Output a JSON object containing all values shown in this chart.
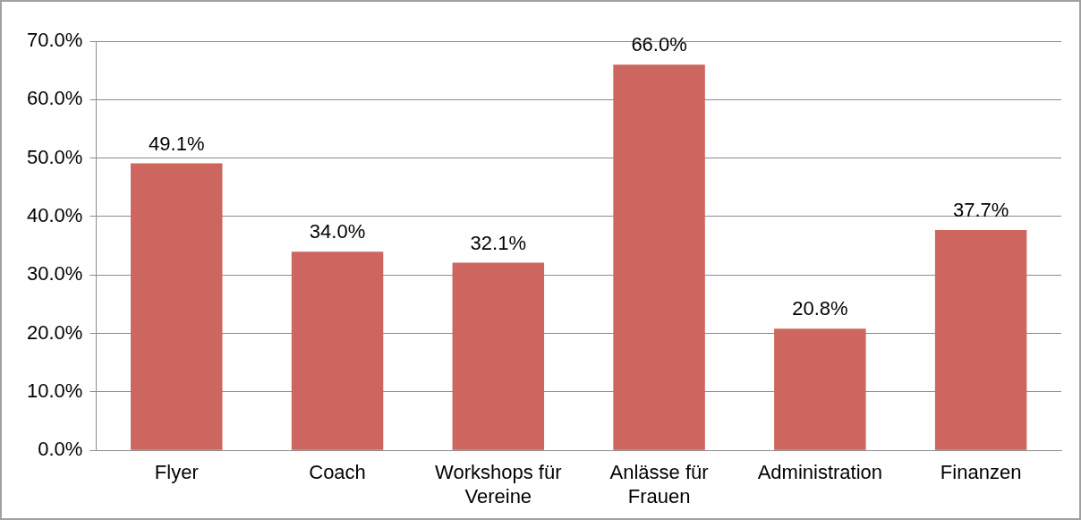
{
  "chart_data": {
    "type": "bar",
    "categories": [
      "Flyer",
      "Coach",
      "Workshops für Vereine",
      "Anlässe für Frauen",
      "Administration",
      "Finanzen"
    ],
    "values": [
      49.1,
      34.0,
      32.1,
      66.0,
      20.8,
      37.7
    ],
    "color": "#cc665e",
    "value_labels": [
      "49.1%",
      "34.0%",
      "32.1%",
      "66.0%",
      "20.8%",
      "37.7%"
    ],
    "ylim": [
      0,
      70
    ],
    "yticks": [
      {
        "value": 0,
        "label": "0.0%"
      },
      {
        "value": 10,
        "label": "10.0%"
      },
      {
        "value": 20,
        "label": "20.0%"
      },
      {
        "value": 30,
        "label": "30.0%"
      },
      {
        "value": 40,
        "label": "40.0%"
      },
      {
        "value": 50,
        "label": "50.0%"
      },
      {
        "value": 60,
        "label": "60.0%"
      },
      {
        "value": 70,
        "label": "70.0%"
      }
    ],
    "grid": "y",
    "legend": false
  }
}
